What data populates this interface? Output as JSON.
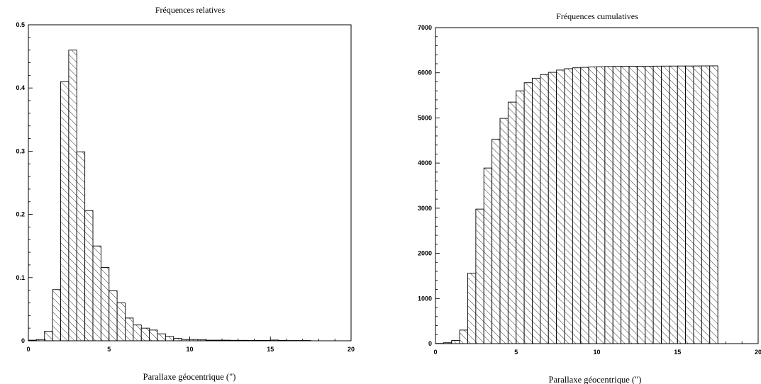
{
  "chart_data": [
    {
      "type": "bar",
      "title": "Fréquences relatives",
      "xlabel": "Parallaxe géocentrique (\")",
      "ylabel": "",
      "xlim": [
        0,
        20
      ],
      "ylim": [
        0,
        0.5
      ],
      "xticks": [
        "0",
        "5",
        "10",
        "15",
        "20"
      ],
      "yticks": [
        "0",
        "0.1",
        "0.2",
        "0.3",
        "0.4",
        "0.5"
      ],
      "bin_width": 0.5,
      "x": [
        0,
        0.5,
        1,
        1.5,
        2,
        2.5,
        3,
        3.5,
        4,
        4.5,
        5,
        5.5,
        6,
        6.5,
        7,
        7.5,
        8,
        8.5,
        9,
        9.5,
        10,
        10.5,
        11,
        11.5,
        12,
        12.5,
        13,
        13.5,
        14,
        14.5,
        15,
        15.5,
        16,
        16.5,
        17
      ],
      "values": [
        0.001,
        0.002,
        0.015,
        0.081,
        0.41,
        0.46,
        0.299,
        0.206,
        0.15,
        0.116,
        0.079,
        0.06,
        0.036,
        0.025,
        0.02,
        0.017,
        0.011,
        0.007,
        0.004,
        0.002,
        0.002,
        0.0015,
        0.001,
        0.001,
        0.001,
        0.0008,
        0.0008,
        0.0007,
        0.0007,
        0.0006,
        0.0012,
        0.0006,
        0.0005,
        0.0005,
        0.0005
      ],
      "fill": "hatch"
    },
    {
      "type": "bar",
      "title": "Fréquences cumulatives",
      "xlabel": "Parallaxe géocentrique (\")",
      "ylabel": "",
      "xlim": [
        0,
        20
      ],
      "ylim": [
        0,
        7000
      ],
      "xticks": [
        "0",
        "5",
        "10",
        "15",
        "20"
      ],
      "yticks": [
        "0",
        "1000",
        "2000",
        "3000",
        "4000",
        "5000",
        "6000",
        "7000"
      ],
      "bin_width": 0.5,
      "x": [
        0,
        0.5,
        1,
        1.5,
        2,
        2.5,
        3,
        3.5,
        4,
        4.5,
        5,
        5.5,
        6,
        6.5,
        7,
        7.5,
        8,
        8.5,
        9,
        9.5,
        10,
        10.5,
        11,
        11.5,
        12,
        12.5,
        13,
        13.5,
        14,
        14.5,
        15,
        15.5,
        16,
        16.5,
        17
      ],
      "values": [
        5,
        20,
        70,
        300,
        1560,
        2980,
        3890,
        4530,
        4990,
        5350,
        5600,
        5780,
        5880,
        5960,
        6010,
        6060,
        6090,
        6110,
        6120,
        6130,
        6135,
        6140,
        6142,
        6143,
        6144,
        6145,
        6146,
        6147,
        6148,
        6149,
        6150,
        6150,
        6151,
        6152,
        6153
      ],
      "fill": "hatch"
    }
  ]
}
